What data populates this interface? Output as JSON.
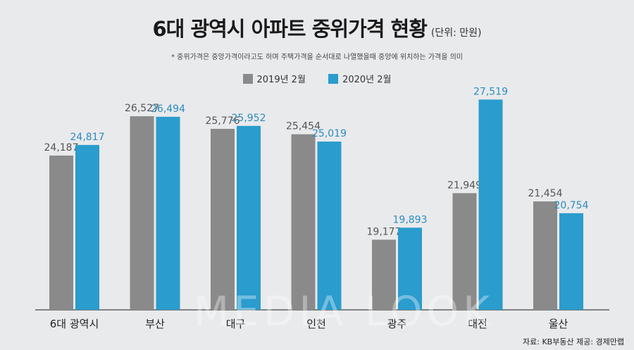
{
  "header": {
    "title": "6대 광역시 아파트 중위가격 현황",
    "unit": "(단위: 만원)",
    "note": "* 중위가격은 중앙가격이라고도 하며 주택가격을 순서대로 나열했을때 중앙에 위치하는 가격을 의미"
  },
  "source": "자료: KB부동산 제공: 경제만랩",
  "watermark": "MEDIA LOOK",
  "colors": {
    "series_2019": "#8a8a8a",
    "series_2020": "#2a9ccd",
    "background": "#e9eaec"
  },
  "chart_data": {
    "type": "bar",
    "title": "6대 광역시 아파트 중위가격 현황",
    "categories": [
      "6대 광역시",
      "부산",
      "대구",
      "인천",
      "광주",
      "대전",
      "울산"
    ],
    "series": [
      {
        "name": "2019년 2월",
        "values": [
          24187,
          26527,
          25776,
          25454,
          19177,
          21949,
          21454
        ],
        "labels": [
          "24,187",
          "26,527",
          "25,776",
          "25,454",
          "19,177",
          "21,949",
          "21,454"
        ]
      },
      {
        "name": "2020년 2월",
        "values": [
          24817,
          26494,
          25952,
          25019,
          19893,
          27519,
          20754
        ],
        "labels": [
          "24,817",
          "26,494",
          "25,952",
          "25,019",
          "19,893",
          "27,519",
          "20,754"
        ]
      }
    ],
    "ylim": [
      15000,
      28500
    ],
    "legend": "top-center",
    "grid": false
  }
}
